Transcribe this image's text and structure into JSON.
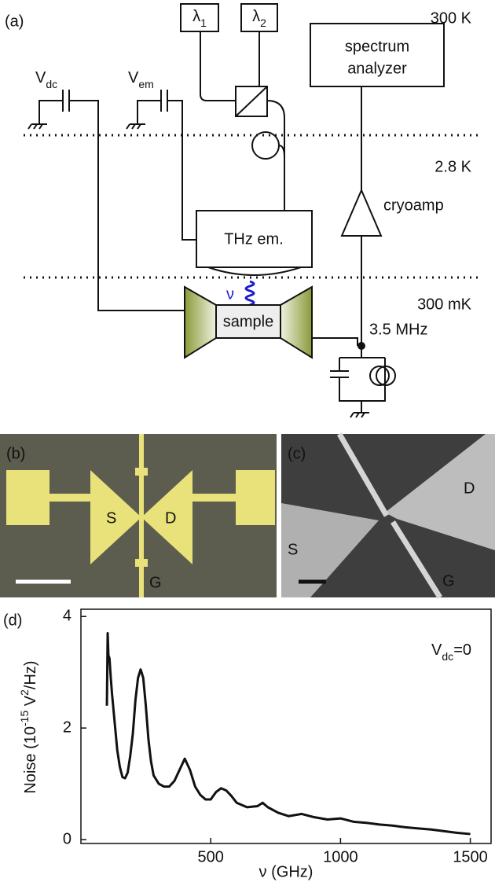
{
  "panel_a": {
    "label": "(a)",
    "temperatures": [
      "300 K",
      "2.8 K",
      "300 mK"
    ],
    "v_dc": [
      {
        "text": "V"
      },
      {
        "text": "dc",
        "sub": true
      }
    ],
    "v_em": [
      {
        "text": "V"
      },
      {
        "text": "em",
        "sub": true
      }
    ],
    "lambda_1": [
      {
        "text": "λ"
      },
      {
        "text": "1",
        "sub": true
      }
    ],
    "lambda_2": [
      {
        "text": "λ"
      },
      {
        "text": "2",
        "sub": true
      }
    ],
    "spectrum_analyzer": [
      "spectrum",
      "analyzer"
    ],
    "cryoamp": "cryoamp",
    "thz_emitter": "THz em.",
    "frequency_symbol": "ν",
    "sample": "sample",
    "frequency": "3.5 MHz"
  },
  "panel_b": {
    "label": "(b)",
    "source": "S",
    "drain": "D",
    "gate": "G"
  },
  "panel_c": {
    "label": "(c)",
    "source": "S",
    "drain": "D",
    "gate": "G"
  },
  "chart_data": {
    "type": "line",
    "label": "(d)",
    "xlabel": "ν (GHz)",
    "ylabel": [
      {
        "text": "Noise (10"
      },
      {
        "text": "-15",
        "sup": true
      },
      {
        "text": " V"
      },
      {
        "text": "2",
        "sup": true
      },
      {
        "text": "/Hz)"
      }
    ],
    "annotation": [
      {
        "text": "V"
      },
      {
        "text": "dc",
        "sub": true
      },
      {
        "text": "=0"
      }
    ],
    "x": [
      100,
      103,
      106,
      110,
      115,
      120,
      130,
      140,
      150,
      160,
      170,
      180,
      190,
      200,
      210,
      220,
      230,
      240,
      250,
      260,
      270,
      280,
      300,
      320,
      340,
      360,
      380,
      400,
      420,
      440,
      460,
      480,
      500,
      520,
      540,
      560,
      580,
      600,
      640,
      680,
      700,
      720,
      760,
      800,
      850,
      900,
      950,
      1000,
      1050,
      1100,
      1150,
      1200,
      1250,
      1300,
      1350,
      1400,
      1450,
      1500
    ],
    "series": [
      {
        "color": "#111111",
        "values": [
          2.4,
          3.7,
          3.3,
          3.25,
          2.9,
          2.6,
          2.1,
          1.6,
          1.3,
          1.12,
          1.1,
          1.2,
          1.5,
          1.9,
          2.5,
          2.9,
          3.05,
          2.9,
          2.4,
          1.8,
          1.4,
          1.15,
          1.0,
          0.95,
          0.95,
          1.05,
          1.25,
          1.45,
          1.25,
          0.95,
          0.8,
          0.72,
          0.72,
          0.85,
          0.92,
          0.88,
          0.78,
          0.66,
          0.58,
          0.6,
          0.66,
          0.58,
          0.48,
          0.42,
          0.46,
          0.4,
          0.36,
          0.38,
          0.32,
          0.3,
          0.27,
          0.25,
          0.22,
          0.2,
          0.18,
          0.15,
          0.12,
          0.1
        ]
      }
    ],
    "xlim": [
      0,
      1580
    ],
    "ylim": [
      -0.07,
      4.13
    ],
    "xticks": [
      500,
      1000,
      1500
    ],
    "yticks": [
      0,
      2,
      4
    ]
  }
}
